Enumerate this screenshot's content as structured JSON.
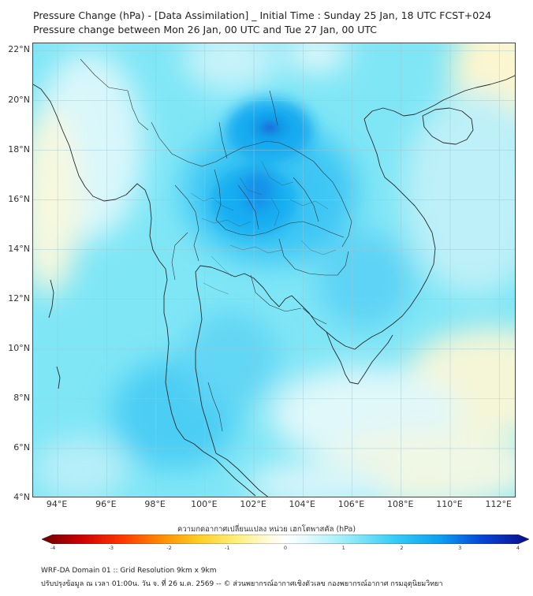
{
  "header": {
    "title_line1": "Pressure Change (hPa) - [Data Assimilation] _ Initial Time : Sunday 25 Jan, 18 UTC FCST+024",
    "title_line2": "Pressure change between Mon 26 Jan, 00 UTC and Tue 27 Jan, 00 UTC"
  },
  "map": {
    "lat_labels": [
      "22°N",
      "20°N",
      "18°N",
      "16°N",
      "14°N",
      "12°N",
      "10°N",
      "8°N",
      "6°N",
      "4°N"
    ],
    "lon_labels": [
      "94°E",
      "96°E",
      "98°E",
      "100°E",
      "102°E",
      "104°E",
      "106°E",
      "108°E",
      "110°E",
      "112°E"
    ],
    "extent": {
      "lon_min": 93,
      "lon_max": 112.7,
      "lat_min": 4,
      "lat_max": 22.3
    },
    "field_colors": {
      "base": "#7fe6f6",
      "strong": "#0aaaf0",
      "max": "#1e78e6",
      "neutral": "#f0fbfd",
      "negative": "#fcf6cf"
    }
  },
  "colorbar": {
    "title": "ความกดอากาศเปลี่ยนแปลง หน่วย เฮกโตพาสคัล (hPa)",
    "ticks": [
      "-4",
      "-3",
      "-2",
      "-1",
      "0",
      "1",
      "2",
      "3",
      "4"
    ],
    "range": [
      -4,
      4
    ]
  },
  "footer": {
    "line1": "WRF-DA Domain 01 :: Grid Resolution 9km x 9km",
    "line2": "ปรับปรุงข้อมูล ณ เวลา 01:00น. วัน จ. ที่ 26 ม.ค. 2569 -- © ส่วนพยากรณ์อากาศเชิงตัวเลข กองพยากรณ์อากาศ กรมอุตุนิยมวิทยา"
  }
}
